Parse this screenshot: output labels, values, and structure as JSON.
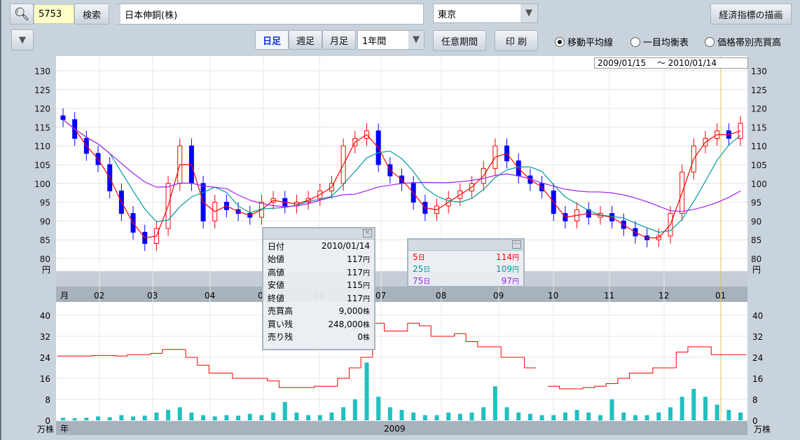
{
  "toolbar": {
    "code_value": "5753",
    "search_label": "検索",
    "company_name": "日本伸銅(株)",
    "market": "東京",
    "indicator_button": "経済指標の描画",
    "period_tabs": [
      {
        "label": "日足",
        "selected": true
      },
      {
        "label": "週足",
        "selected": false
      },
      {
        "label": "月足",
        "selected": false
      }
    ],
    "range_select": "1年間",
    "custom_period": "任意期間",
    "print": "印 刷",
    "overlays": [
      {
        "label": "移動平均線",
        "selected": true
      },
      {
        "label": "一目均衡表",
        "selected": false
      },
      {
        "label": "価格帯別売買高",
        "selected": false
      }
    ]
  },
  "date_range": "2009/01/15　 〜 2010/01/14",
  "info_panel": {
    "rows": [
      {
        "label": "日付",
        "value": "2010/01/14",
        "unit": ""
      },
      {
        "label": "始値",
        "value": "117",
        "unit": "円"
      },
      {
        "label": "高値",
        "value": "117",
        "unit": "円"
      },
      {
        "label": "安値",
        "value": "115",
        "unit": "円"
      },
      {
        "label": "終値",
        "value": "117",
        "unit": "円"
      },
      {
        "label": "売買高",
        "value": "9,000",
        "unit": "株"
      },
      {
        "label": "買い残",
        "value": "248,000",
        "unit": "株"
      },
      {
        "label": "売り残",
        "value": "0",
        "unit": "株"
      }
    ]
  },
  "ma_panel": {
    "rows": [
      {
        "label": "5",
        "unit_day": "日",
        "value": "114",
        "unit": "円",
        "color": "#ff0000"
      },
      {
        "label": "25",
        "unit_day": "日",
        "value": "109",
        "unit": "円",
        "color": "#009a9a"
      },
      {
        "label": "75",
        "unit_day": "日",
        "value": "97",
        "unit": "円",
        "color": "#a020f0"
      }
    ]
  },
  "chart_data": {
    "type": "candlestick",
    "price_axis": {
      "ticks": [
        130,
        125,
        120,
        115,
        110,
        105,
        100,
        95,
        90,
        85,
        80
      ],
      "unit": "円",
      "range": [
        80,
        130
      ]
    },
    "volume_axis": {
      "ticks": [
        40,
        32,
        24,
        16,
        8,
        0
      ],
      "unit": "万株",
      "range": [
        0,
        40
      ]
    },
    "month_labels": [
      "月",
      "02",
      "03",
      "04",
      "05",
      "06",
      "07",
      "08",
      "09",
      "10",
      "11",
      "12",
      "01"
    ],
    "year_labels": [
      "年",
      "2009"
    ],
    "weekly_close": [
      117,
      112,
      108,
      105,
      98,
      92,
      87,
      84,
      88,
      100,
      110,
      100,
      90,
      95,
      93,
      92,
      91,
      95,
      96,
      94,
      95,
      96,
      98,
      100,
      110,
      112,
      114,
      105,
      102,
      100,
      95,
      92,
      94,
      96,
      98,
      100,
      104,
      110,
      106,
      102,
      100,
      98,
      92,
      90,
      93,
      91,
      92,
      90,
      88,
      86,
      85,
      86,
      92,
      103,
      110,
      112,
      114,
      112,
      116
    ],
    "weekly_volume": [
      1,
      0.8,
      1,
      1.5,
      1.2,
      2,
      1.5,
      1.8,
      3,
      4,
      5,
      3,
      2,
      1.5,
      2,
      1.8,
      2.5,
      2,
      3,
      7,
      3,
      2,
      2,
      3,
      5,
      8,
      22,
      9,
      5,
      4,
      3,
      2,
      2,
      3,
      2.5,
      3,
      5,
      13,
      5,
      3,
      2.5,
      2,
      2,
      3,
      4,
      3,
      2,
      8,
      3,
      2,
      2,
      3,
      5,
      9,
      12,
      9,
      6,
      4,
      3
    ],
    "buy_balance": [
      24.5,
      24.5,
      24.5,
      24.7,
      24.7,
      24.5,
      25,
      25,
      25.5,
      27,
      27,
      24,
      21,
      18,
      18,
      16,
      16,
      16,
      15,
      12.5,
      12.5,
      12.5,
      13,
      13,
      16,
      20,
      24,
      37,
      34,
      34,
      37,
      36,
      32,
      32,
      33,
      30,
      28,
      28,
      24,
      24,
      20,
      null,
      13,
      12,
      12,
      12.5,
      13,
      14,
      16,
      18,
      18,
      20,
      20,
      26,
      28,
      28,
      25,
      25,
      25
    ],
    "moving_averages": [
      {
        "name": "5日",
        "color": "#ff0000"
      },
      {
        "name": "25日",
        "color": "#009a9a"
      },
      {
        "name": "75日",
        "color": "#a020f0"
      }
    ]
  }
}
